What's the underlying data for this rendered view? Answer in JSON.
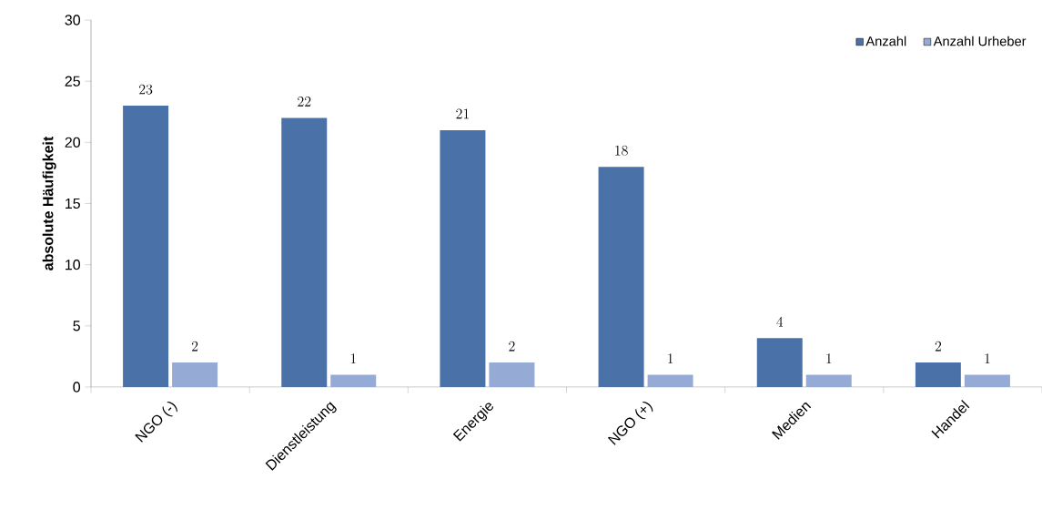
{
  "chart_data": {
    "type": "bar",
    "ylabel": "absolute Häufigkeit",
    "categories": [
      "NGO (-)",
      "Dienstleistung",
      "Energie",
      "NGO (+)",
      "Medien",
      "Handel"
    ],
    "series": [
      {
        "name": "Anzahl",
        "color": "#4a72a8",
        "values": [
          23,
          22,
          21,
          18,
          4,
          2
        ]
      },
      {
        "name": "Anzahl Urheber",
        "color": "#95abd5",
        "values": [
          2,
          1,
          2,
          1,
          1,
          1
        ]
      }
    ],
    "ylim": [
      0,
      30
    ],
    "yticks": [
      0,
      5,
      10,
      15,
      20,
      25,
      30
    ],
    "grid": false,
    "legend": "top right",
    "data_labels": true
  }
}
